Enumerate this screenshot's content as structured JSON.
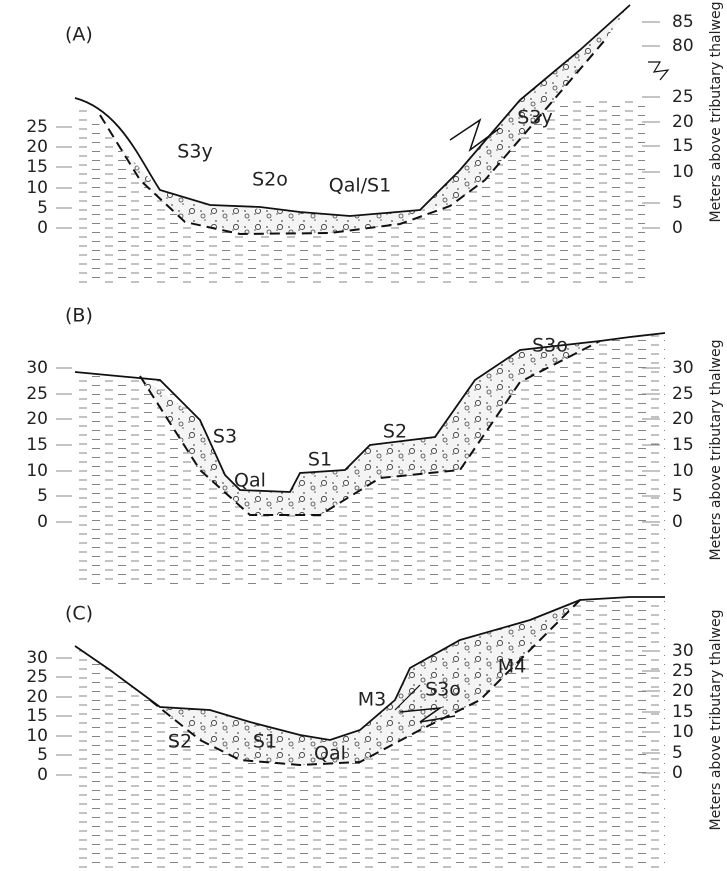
{
  "panels": [
    {
      "label": "(A)",
      "left_ticks": [
        25,
        20,
        15,
        10,
        5,
        0
      ],
      "right_ticks": [
        85,
        80,
        25,
        20,
        15,
        10,
        5,
        0
      ],
      "units": [
        "S3y",
        "S2o",
        "Qal/S1",
        "S3y"
      ],
      "axis_title": "Meters above tributary thalweg"
    },
    {
      "label": "(B)",
      "left_ticks": [
        30,
        25,
        20,
        15,
        10,
        5,
        0
      ],
      "right_ticks": [
        30,
        25,
        20,
        15,
        10,
        5,
        0
      ],
      "units": [
        "S3",
        "Qal",
        "S1",
        "S2",
        "S3o"
      ],
      "axis_title": "Meters above tributary thalweg"
    },
    {
      "label": "(C)",
      "left_ticks": [
        30,
        25,
        20,
        15,
        10,
        5,
        0
      ],
      "right_ticks": [
        30,
        25,
        20,
        15,
        10,
        5,
        0
      ],
      "units": [
        "S2",
        "S1",
        "Qal",
        "M3",
        "S3o",
        "M4"
      ],
      "axis_title": "Meters above tributary thalweg"
    }
  ]
}
